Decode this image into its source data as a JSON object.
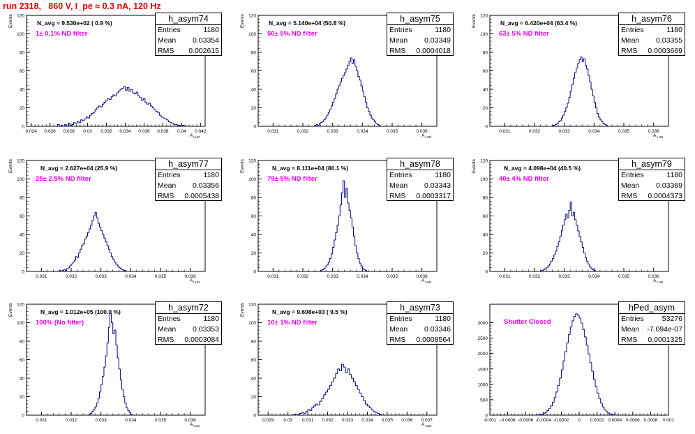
{
  "title": "run 2318,   860 V, I_pe ≈ 0.3 nA, 120 Hz",
  "chart_data": [
    {
      "type": "histogram",
      "name": "h_asym74",
      "navg": "N_avg = 9.530e+02 ( 0.9 %)",
      "filter": "1± 0.1% ND filter",
      "entries": "1180",
      "mean": "0.03354",
      "rms": "0.002615",
      "xlim": [
        0.0235,
        0.0425
      ],
      "ylim": [
        0,
        120
      ],
      "xlabel": "A",
      "xlabel_sub": "LUD",
      "ylabel": "Events",
      "xticks": [
        "0.024",
        "0.026",
        "0.028",
        "0.03",
        "0.032",
        "0.034",
        "0.036",
        "0.038",
        "0.04",
        "0.042"
      ],
      "yticks": [
        "0",
        "20",
        "40",
        "60",
        "80",
        "100",
        "120"
      ],
      "bin_width": 0.00019,
      "values": [
        2,
        0,
        1,
        0,
        2,
        0,
        3,
        1,
        2,
        4,
        3,
        5,
        4,
        7,
        6,
        8,
        10,
        9,
        12,
        14,
        15,
        18,
        20,
        22,
        21,
        24,
        26,
        28,
        30,
        29,
        32,
        34,
        33,
        36,
        38,
        40,
        41,
        43,
        39,
        42,
        38,
        40,
        36,
        35,
        37,
        33,
        31,
        28,
        30,
        26,
        24,
        25,
        22,
        20,
        18,
        16,
        15,
        12,
        10,
        9,
        8,
        7,
        5,
        4,
        3,
        2,
        2,
        1,
        1,
        0,
        1
      ],
      "xstart": 0.0268
    },
    {
      "type": "histogram",
      "name": "h_asym75",
      "navg": "N_avg = 5.140e+04 (50.8 %)",
      "filter": "50± 5% ND filter",
      "entries": "1180",
      "mean": "0.03349",
      "rms": "0.0004018",
      "xlim": [
        0.0305,
        0.0365
      ],
      "ylim": [
        0,
        120
      ],
      "xlabel": "A",
      "xlabel_sub": "LUD",
      "ylabel": "Events",
      "xticks": [
        "0.031",
        "0.032",
        "0.033",
        "0.034",
        "0.035",
        "0.036"
      ],
      "yticks": [
        "0",
        "20",
        "40",
        "60",
        "80",
        "100",
        "120"
      ],
      "bin_width": 5e-05,
      "xstart": 0.0324,
      "values": [
        1,
        2,
        1,
        3,
        4,
        5,
        7,
        9,
        12,
        15,
        18,
        22,
        26,
        30,
        35,
        40,
        44,
        48,
        52,
        55,
        58,
        62,
        66,
        70,
        74,
        68,
        72,
        65,
        60,
        54,
        50,
        44,
        38,
        32,
        26,
        20,
        16,
        12,
        9,
        7,
        5,
        3,
        2,
        1
      ]
    },
    {
      "type": "histogram",
      "name": "h_asym76",
      "navg": "N_avg = 6.420e+04 (63.4 %)",
      "filter": "63± 5% ND filter",
      "entries": "1180",
      "mean": "0.03355",
      "rms": "0.0003669",
      "xlim": [
        0.0305,
        0.0365
      ],
      "ylim": [
        0,
        120
      ],
      "xlabel": "A",
      "xlabel_sub": "LUD",
      "ylabel": "Events",
      "xticks": [
        "0.031",
        "0.032",
        "0.033",
        "0.034",
        "0.035",
        "0.036"
      ],
      "yticks": [
        "0",
        "20",
        "40",
        "60",
        "80",
        "100",
        "120"
      ],
      "bin_width": 5e-05,
      "xstart": 0.0326,
      "values": [
        1,
        1,
        2,
        3,
        5,
        6,
        9,
        12,
        16,
        20,
        25,
        31,
        38,
        45,
        52,
        58,
        63,
        68,
        72,
        75,
        70,
        73,
        66,
        62,
        55,
        48,
        40,
        33,
        26,
        20,
        14,
        10,
        7,
        5,
        3,
        2,
        1
      ]
    },
    {
      "type": "histogram",
      "name": "h_asym77",
      "navg": "N_avg = 2.627e+04 (25.9 %)",
      "filter": "25± 2.5% ND filter",
      "entries": "1180",
      "mean": "0.03356",
      "rms": "0.0005438",
      "xlim": [
        0.0305,
        0.0365
      ],
      "ylim": [
        0,
        120
      ],
      "xlabel": "A",
      "xlabel_sub": "LUD",
      "ylabel": "Events",
      "xticks": [
        "0.031",
        "0.032",
        "0.033",
        "0.034",
        "0.035",
        "0.036"
      ],
      "yticks": [
        "0",
        "20",
        "40",
        "60",
        "80",
        "100",
        "120"
      ],
      "bin_width": 5e-05,
      "xstart": 0.0316,
      "values": [
        1,
        0,
        1,
        2,
        1,
        3,
        4,
        6,
        8,
        10,
        12,
        16,
        15,
        20,
        24,
        28,
        30,
        35,
        38,
        42,
        46,
        50,
        55,
        60,
        64,
        58,
        52,
        48,
        44,
        40,
        36,
        32,
        28,
        24,
        20,
        16,
        13,
        10,
        8,
        6,
        4,
        3,
        2,
        1,
        1
      ]
    },
    {
      "type": "histogram",
      "name": "h_asym78",
      "navg": "N_avg = 8.111e+04 (80.1 %)",
      "filter": "79± 5% ND filter",
      "entries": "1180",
      "mean": "0.03343",
      "rms": "0.0003317",
      "xlim": [
        0.0305,
        0.0365
      ],
      "ylim": [
        0,
        120
      ],
      "xlabel": "A",
      "xlabel_sub": "LUD",
      "ylabel": "Events",
      "xticks": [
        "0.031",
        "0.032",
        "0.033",
        "0.034",
        "0.035",
        "0.036"
      ],
      "yticks": [
        "0",
        "20",
        "40",
        "60",
        "80",
        "100",
        "120"
      ],
      "bin_width": 5e-05,
      "xstart": 0.0326,
      "values": [
        1,
        2,
        3,
        5,
        7,
        10,
        14,
        19,
        26,
        34,
        42,
        50,
        60,
        72,
        85,
        98,
        80,
        90,
        74,
        66,
        58,
        48,
        38,
        28,
        20,
        14,
        9,
        6,
        3,
        2,
        1
      ]
    },
    {
      "type": "histogram",
      "name": "h_asym79",
      "navg": "N_avg = 4.098e+04 (40.5 %)",
      "filter": "40± 4% ND filter",
      "entries": "1180",
      "mean": "0.03369",
      "rms": "0.0004373",
      "xlim": [
        0.0305,
        0.0365
      ],
      "ylim": [
        0,
        120
      ],
      "xlabel": "A",
      "xlabel_sub": "LUD",
      "ylabel": "Events",
      "xticks": [
        "0.031",
        "0.032",
        "0.033",
        "0.034",
        "0.035",
        "0.036"
      ],
      "yticks": [
        "0",
        "20",
        "40",
        "60",
        "80",
        "100",
        "120"
      ],
      "bin_width": 5e-05,
      "xstart": 0.0322,
      "values": [
        1,
        1,
        2,
        3,
        4,
        6,
        8,
        11,
        14,
        18,
        22,
        27,
        32,
        38,
        44,
        50,
        56,
        62,
        58,
        66,
        75,
        60,
        64,
        56,
        50,
        44,
        38,
        32,
        26,
        20,
        15,
        11,
        8,
        5,
        3,
        2,
        1
      ]
    },
    {
      "type": "histogram",
      "name": "h_asym72",
      "navg": "N_avg = 1.012e+05 (100.0 %)",
      "filter": "100% (No filter)",
      "entries": "1180",
      "mean": "0.03353",
      "rms": "0.0003084",
      "xlim": [
        0.0305,
        0.0365
      ],
      "ylim": [
        0,
        120
      ],
      "xlabel": "A",
      "xlabel_sub": "LUD",
      "ylabel": "Events",
      "xticks": [
        "0.031",
        "0.032",
        "0.033",
        "0.034",
        "0.035",
        "0.036"
      ],
      "yticks": [
        "0",
        "20",
        "40",
        "60",
        "80",
        "100",
        "120"
      ],
      "bin_width": 5e-05,
      "xstart": 0.0326,
      "values": [
        1,
        2,
        4,
        6,
        9,
        13,
        18,
        25,
        33,
        42,
        52,
        64,
        78,
        95,
        110,
        100,
        88,
        92,
        76,
        62,
        50,
        38,
        28,
        20,
        13,
        8,
        5,
        3,
        1
      ]
    },
    {
      "type": "histogram",
      "name": "h_asym73",
      "navg": "N_avg = 9.608e+03 ( 9.5 %)",
      "filter": "10± 1% ND filter",
      "entries": "1180",
      "mean": "0.03346",
      "rms": "0.0008564",
      "xlim": [
        0.0285,
        0.0375
      ],
      "ylim": [
        0,
        120
      ],
      "xlabel": "A",
      "xlabel_sub": "LUD",
      "ylabel": "Events",
      "xticks": [
        "0.029",
        "0.03",
        "0.031",
        "0.032",
        "0.033",
        "0.034",
        "0.035",
        "0.036",
        "0.037"
      ],
      "yticks": [
        "0",
        "20",
        "40",
        "60",
        "80",
        "100",
        "120"
      ],
      "bin_width": 0.0001,
      "xstart": 0.0303,
      "values": [
        1,
        0,
        1,
        2,
        3,
        2,
        4,
        6,
        5,
        8,
        10,
        12,
        11,
        15,
        18,
        22,
        25,
        28,
        32,
        36,
        40,
        45,
        50,
        48,
        55,
        52,
        46,
        50,
        44,
        40,
        36,
        32,
        28,
        24,
        20,
        16,
        12,
        10,
        8,
        6,
        4,
        3,
        2,
        1
      ]
    },
    {
      "type": "histogram",
      "name": "hPed_asym",
      "navg": "",
      "filter": "Shutter Closed",
      "entries": "53276",
      "mean": "-7.094e-07",
      "rms": "0.0001325",
      "xlim": [
        -0.001,
        0.001
      ],
      "ylim": [
        0,
        3600
      ],
      "xlabel": "",
      "xlabel_sub": "",
      "ylabel": "",
      "xticks": [
        "-0.001",
        "-0.0008",
        "-0.0006",
        "-0.0004",
        "-0.0002",
        "0",
        "0.0002",
        "0.0004",
        "0.0006",
        "0.0008",
        "0.001"
      ],
      "yticks": [
        "0",
        "500",
        "1000",
        "1500",
        "2000",
        "2500",
        "3000"
      ],
      "bin_width": 2e-05,
      "xstart": -0.0005,
      "values": [
        2,
        5,
        10,
        20,
        35,
        60,
        95,
        145,
        210,
        300,
        420,
        570,
        750,
        960,
        1200,
        1470,
        1760,
        2060,
        2350,
        2620,
        2860,
        3060,
        3200,
        3290,
        3250,
        3150,
        2990,
        2780,
        2540,
        2270,
        1990,
        1700,
        1430,
        1170,
        930,
        720,
        540,
        390,
        270,
        180,
        115,
        70,
        40,
        22,
        12,
        6,
        3,
        1
      ]
    }
  ]
}
